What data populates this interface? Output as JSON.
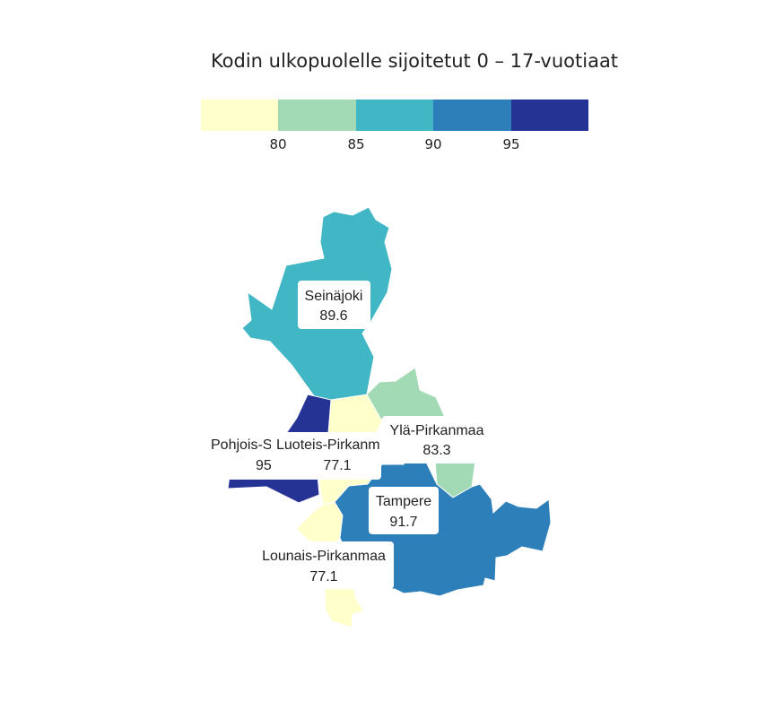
{
  "title": "Kodin ulkopuolelle sijoitetut 0 – 17-vuotiaat",
  "legend": {
    "colors": [
      "#ffffcc",
      "#a1dab4",
      "#41b6c4",
      "#2c7fb8",
      "#253494"
    ],
    "ticks": [
      "80",
      "85",
      "90",
      "95"
    ]
  },
  "chart_data": {
    "type": "choropleth",
    "regions": [
      {
        "name": "Seinäjoki",
        "value_label": "89.6",
        "value": 89.6,
        "color": "#41b6c4"
      },
      {
        "name": "Ylä-Pirkanmaa",
        "value_label": "83.3",
        "value": 83.3,
        "color": "#a1dab4"
      },
      {
        "name": "Pohjois-S",
        "value_label": "95",
        "value": 95,
        "color": "#253494"
      },
      {
        "name": "Luoteis-Pirkanm",
        "value_label": "77.1",
        "value": 77.1,
        "color": "#ffffcc"
      },
      {
        "name": "Tampere",
        "value_label": "91.7",
        "value": 91.7,
        "color": "#2c7fb8"
      },
      {
        "name": "Lounais-Pirkanmaa",
        "value_label": "77.1",
        "value": 77.1,
        "color": "#ffffcc"
      }
    ]
  }
}
